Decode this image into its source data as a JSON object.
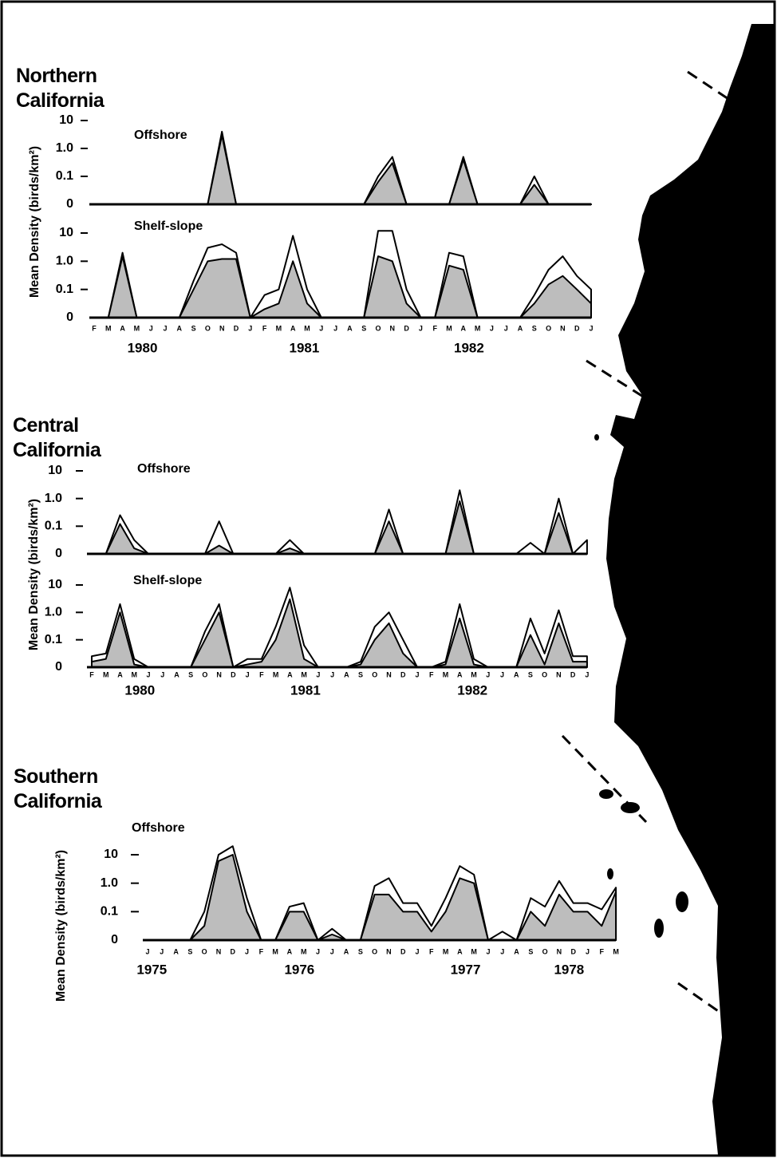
{
  "chart_data": [
    {
      "type": "area",
      "title": "Northern California",
      "ylabel": "Mean Density (birds/km²)",
      "yscale": "log",
      "categories": [
        "F",
        "M",
        "A",
        "M",
        "J",
        "J",
        "A",
        "S",
        "O",
        "N",
        "D",
        "J",
        "F",
        "M",
        "A",
        "M",
        "J",
        "J",
        "A",
        "S",
        "O",
        "N",
        "D",
        "J",
        "F",
        "M",
        "A",
        "M",
        "J",
        "J",
        "A",
        "S",
        "O",
        "N",
        "D",
        "J"
      ],
      "years": [
        "1980",
        "1981",
        "1982"
      ],
      "panels": [
        {
          "label": "Offshore",
          "ylim": [
            0,
            10
          ],
          "yticks": [
            0,
            0.1,
            {
              "value": 1,
              "label": "1.0"
            },
            10
          ],
          "series": [
            {
              "color": "#ffffff",
              "values": [
                0,
                0,
                0,
                0,
                0,
                0,
                0,
                0,
                0,
                4,
                0,
                0,
                0,
                0,
                0,
                0,
                0,
                0,
                0,
                0,
                0.1,
                0.5,
                0,
                0,
                0,
                0,
                0.5,
                0,
                0,
                0,
                0,
                0.1,
                0,
                0,
                0,
                0
              ]
            },
            {
              "color": "#bdbdbd",
              "values": [
                0,
                0,
                0,
                0,
                0,
                0,
                0,
                0,
                0,
                3,
                0,
                0,
                0,
                0,
                0,
                0,
                0,
                0,
                0,
                0,
                0.08,
                0.3,
                0,
                0,
                0,
                0,
                0.4,
                0,
                0,
                0,
                0,
                0.07,
                0,
                0,
                0,
                0
              ]
            }
          ]
        },
        {
          "label": "Shelf-slope",
          "ylim": [
            0,
            10
          ],
          "yticks": [
            0,
            0.1,
            {
              "value": 1,
              "label": "1.0"
            },
            10
          ],
          "series": [
            {
              "color": "#ffffff",
              "values": [
                0,
                0,
                2,
                0,
                0,
                0,
                0,
                0.2,
                3,
                4,
                2,
                0,
                0.08,
                0.1,
                8,
                0.1,
                0,
                0,
                0,
                0,
                12,
                12,
                0.1,
                0,
                0,
                2,
                1.5,
                0,
                0,
                0,
                0,
                0.08,
                0.5,
                1.5,
                0.3,
                0.1
              ]
            },
            {
              "color": "#bdbdbd",
              "values": [
                0,
                0,
                1.5,
                0,
                0,
                0,
                0,
                0.1,
                1,
                1.2,
                1.2,
                0,
                0.03,
                0.05,
                1,
                0.05,
                0,
                0,
                0,
                0,
                1.5,
                1,
                0.05,
                0,
                0,
                0.7,
                0.5,
                0,
                0,
                0,
                0,
                0.05,
                0.15,
                0.3,
                0.1,
                0.05
              ]
            }
          ]
        }
      ]
    },
    {
      "type": "area",
      "title": "Central California",
      "ylabel": "Mean Density (birds/km²)",
      "yscale": "log",
      "categories": [
        "F",
        "M",
        "A",
        "M",
        "J",
        "J",
        "A",
        "S",
        "O",
        "N",
        "D",
        "J",
        "F",
        "M",
        "A",
        "M",
        "J",
        "J",
        "A",
        "S",
        "O",
        "N",
        "D",
        "J",
        "F",
        "M",
        "A",
        "M",
        "J",
        "J",
        "A",
        "S",
        "O",
        "N",
        "D",
        "J"
      ],
      "years": [
        "1980",
        "1981",
        "1982"
      ],
      "panels": [
        {
          "label": "Offshore",
          "ylim": [
            0,
            10
          ],
          "yticks": [
            0,
            0.1,
            {
              "value": 1,
              "label": "1.0"
            },
            10
          ],
          "series": [
            {
              "color": "#ffffff",
              "values": [
                0,
                0,
                0.25,
                0.05,
                0,
                0,
                0,
                0,
                0,
                0.15,
                0,
                0,
                0,
                0,
                0.05,
                0,
                0,
                0,
                0,
                0,
                0,
                0.4,
                0,
                0,
                0,
                0,
                2,
                0,
                0,
                0,
                0,
                0.04,
                0,
                1,
                0,
                0.05
              ]
            },
            {
              "color": "#bdbdbd",
              "values": [
                0,
                0,
                0.12,
                0.02,
                0,
                0,
                0,
                0,
                0,
                0.03,
                0,
                0,
                0,
                0,
                0.02,
                0,
                0,
                0,
                0,
                0,
                0,
                0.15,
                0,
                0,
                0,
                0,
                0.8,
                0,
                0,
                0,
                0,
                0,
                0,
                0.3,
                0,
                0
              ]
            }
          ]
        },
        {
          "label": "Shelf-slope",
          "ylim": [
            0,
            10
          ],
          "yticks": [
            0,
            0.1,
            {
              "value": 1,
              "label": "1.0"
            },
            10
          ],
          "series": [
            {
              "color": "#ffffff",
              "values": [
                0.04,
                0.05,
                2,
                0.03,
                0,
                0,
                0,
                0,
                0.2,
                2,
                0,
                0.03,
                0.03,
                0.3,
                8,
                0.08,
                0,
                0,
                0,
                0.02,
                0.3,
                1,
                0.1,
                0,
                0,
                0.02,
                2,
                0.03,
                0,
                0,
                0,
                0.6,
                0.05,
                1.2,
                0.04,
                0.04
              ]
            },
            {
              "color": "#bdbdbd",
              "values": [
                0.02,
                0.03,
                1,
                0.01,
                0,
                0,
                0,
                0,
                0.1,
                1,
                0,
                0.01,
                0.02,
                0.1,
                3,
                0.03,
                0,
                0,
                0,
                0.01,
                0.1,
                0.4,
                0.05,
                0,
                0,
                0.01,
                0.6,
                0.01,
                0,
                0,
                0,
                0.15,
                0.01,
                0.4,
                0.02,
                0.02
              ]
            }
          ]
        }
      ]
    },
    {
      "type": "area",
      "title": "Southern California",
      "ylabel": "Mean Density (birds/km²)",
      "yscale": "log",
      "categories": [
        "J",
        "J",
        "A",
        "S",
        "O",
        "N",
        "D",
        "J",
        "F",
        "M",
        "A",
        "M",
        "J",
        "J",
        "A",
        "S",
        "O",
        "N",
        "D",
        "J",
        "F",
        "M",
        "A",
        "M",
        "J",
        "J",
        "A",
        "S",
        "O",
        "N",
        "D",
        "J",
        "F",
        "M"
      ],
      "years": [
        "1975",
        "1976",
        "1977",
        "1978"
      ],
      "panels": [
        {
          "label": "Offshore",
          "ylim": [
            0,
            10
          ],
          "yticks": [
            0,
            0.1,
            {
              "value": 1,
              "label": "1.0"
            },
            10
          ],
          "series": [
            {
              "color": "#ffffff",
              "values": [
                0,
                0,
                0,
                0,
                0.1,
                10,
                20,
                0.3,
                0,
                0,
                0.15,
                0.2,
                0,
                0.04,
                0,
                0,
                0.8,
                1.5,
                0.2,
                0.2,
                0.05,
                0.3,
                4,
                2,
                0,
                0.03,
                0,
                0.3,
                0.15,
                1.2,
                0.2,
                0.2,
                0.12,
                0.7
              ]
            },
            {
              "color": "#bdbdbd",
              "values": [
                0,
                0,
                0,
                0,
                0.05,
                6,
                10,
                0.1,
                0,
                0,
                0.1,
                0.1,
                0,
                0.02,
                0,
                0,
                0.4,
                0.4,
                0.1,
                0.1,
                0.03,
                0.1,
                1.5,
                1,
                0,
                0,
                0,
                0.1,
                0.05,
                0.4,
                0.1,
                0.1,
                0.05,
                0.5
              ]
            }
          ]
        }
      ]
    }
  ]
}
